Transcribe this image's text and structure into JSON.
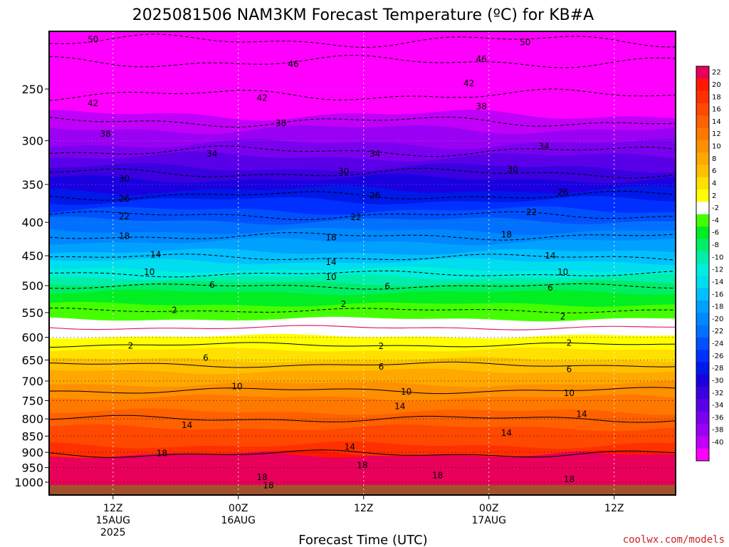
{
  "chart_data": {
    "type": "heatmap",
    "title": "2025081506 NAM3KM Forecast Temperature (ºC) for KB#A",
    "xlabel": "Forecast Time (UTC)",
    "ylabel": "",
    "credit": "coolwx.com/models",
    "y_scale": "log-pressure",
    "y_ticks": [
      250,
      300,
      350,
      400,
      450,
      500,
      550,
      600,
      650,
      700,
      750,
      800,
      850,
      900,
      950,
      1000
    ],
    "x_ticks": [
      {
        "line1": "12Z",
        "line2": "15AUG",
        "line3": "2025"
      },
      {
        "line1": "00Z",
        "line2": "16AUG",
        "line3": ""
      },
      {
        "line1": "12Z",
        "line2": "",
        "line3": ""
      },
      {
        "line1": "00Z",
        "line2": "17AUG",
        "line3": ""
      },
      {
        "line1": "12Z",
        "line2": "",
        "line3": ""
      }
    ],
    "colorbar_labels": [
      "22",
      "20",
      "18",
      "16",
      "14",
      "12",
      "10",
      "8",
      "6",
      "4",
      "2",
      "-2",
      "-4",
      "-6",
      "-8",
      "-10",
      "-12",
      "-14",
      "-16",
      "-18",
      "-20",
      "-22",
      "-24",
      "-26",
      "-28",
      "-30",
      "-32",
      "-34",
      "-36",
      "-38",
      "-40"
    ],
    "colors": {
      "22": "#e8005a",
      "20": "#ff1800",
      "18": "#ff3000",
      "16": "#ff4800",
      "14": "#ff6000",
      "12": "#ff7800",
      "10": "#ff9000",
      "8": "#ffa800",
      "6": "#ffc000",
      "4": "#ffe000",
      "2": "#ffff00",
      "0": "#ffffff",
      "-2": "#44ff00",
      "-4": "#00ee22",
      "-6": "#00ee66",
      "-8": "#00eeaa",
      "-10": "#00eedd",
      "-12": "#00ddee",
      "-14": "#00c0ff",
      "-16": "#00a0ff",
      "-18": "#0088ff",
      "-20": "#0070ff",
      "-22": "#0050ff",
      "-24": "#0030ff",
      "-26": "#0018e8",
      "-28": "#1a00e0",
      "-30": "#3a00e0",
      "-32": "#5a00e8",
      "-34": "#7a00f0",
      "-36": "#9a00f4",
      "-38": "#c000f8",
      "-40": "#ff00ff"
    },
    "freezing_line_color": "#e0207a",
    "ground_color": "#a0522d",
    "contours": [
      {
        "level": -50,
        "labels": [
          {
            "x": 0.07,
            "p": 210
          },
          {
            "x": 0.76,
            "p": 212
          }
        ]
      },
      {
        "level": -46,
        "labels": [
          {
            "x": 0.39,
            "p": 229
          },
          {
            "x": 0.69,
            "p": 225
          }
        ]
      },
      {
        "level": -42,
        "labels": [
          {
            "x": 0.07,
            "p": 263
          },
          {
            "x": 0.34,
            "p": 258
          },
          {
            "x": 0.67,
            "p": 245
          }
        ]
      },
      {
        "level": -38,
        "labels": [
          {
            "x": 0.09,
            "p": 293
          },
          {
            "x": 0.37,
            "p": 282
          },
          {
            "x": 0.69,
            "p": 266
          }
        ]
      },
      {
        "level": -34,
        "labels": [
          {
            "x": 0.26,
            "p": 314
          },
          {
            "x": 0.52,
            "p": 314
          },
          {
            "x": 0.79,
            "p": 306
          }
        ]
      },
      {
        "level": -30,
        "labels": [
          {
            "x": 0.12,
            "p": 343
          },
          {
            "x": 0.47,
            "p": 334
          },
          {
            "x": 0.74,
            "p": 332
          }
        ]
      },
      {
        "level": -26,
        "labels": [
          {
            "x": 0.12,
            "p": 368
          },
          {
            "x": 0.52,
            "p": 364
          },
          {
            "x": 0.82,
            "p": 360
          }
        ]
      },
      {
        "level": -22,
        "labels": [
          {
            "x": 0.12,
            "p": 392
          },
          {
            "x": 0.49,
            "p": 393
          },
          {
            "x": 0.77,
            "p": 386
          }
        ]
      },
      {
        "level": -18,
        "labels": [
          {
            "x": 0.12,
            "p": 420
          },
          {
            "x": 0.45,
            "p": 422
          },
          {
            "x": 0.73,
            "p": 418
          }
        ]
      },
      {
        "level": -14,
        "labels": [
          {
            "x": 0.17,
            "p": 448
          },
          {
            "x": 0.45,
            "p": 460
          },
          {
            "x": 0.8,
            "p": 450
          }
        ]
      },
      {
        "level": -10,
        "labels": [
          {
            "x": 0.16,
            "p": 477
          },
          {
            "x": 0.45,
            "p": 485
          },
          {
            "x": 0.82,
            "p": 477
          }
        ]
      },
      {
        "level": -6,
        "labels": [
          {
            "x": 0.26,
            "p": 499
          },
          {
            "x": 0.54,
            "p": 501
          },
          {
            "x": 0.8,
            "p": 504
          }
        ]
      },
      {
        "level": -2,
        "labels": [
          {
            "x": 0.2,
            "p": 545
          },
          {
            "x": 0.47,
            "p": 534
          },
          {
            "x": 0.82,
            "p": 558
          }
        ]
      },
      {
        "level": 2,
        "labels": [
          {
            "x": 0.13,
            "p": 618
          },
          {
            "x": 0.53,
            "p": 619
          },
          {
            "x": 0.83,
            "p": 612
          }
        ]
      },
      {
        "level": 6,
        "labels": [
          {
            "x": 0.25,
            "p": 645
          },
          {
            "x": 0.53,
            "p": 666
          },
          {
            "x": 0.83,
            "p": 672
          }
        ]
      },
      {
        "level": 10,
        "labels": [
          {
            "x": 0.3,
            "p": 713
          },
          {
            "x": 0.57,
            "p": 727
          },
          {
            "x": 0.83,
            "p": 731
          }
        ]
      },
      {
        "level": 14,
        "labels": [
          {
            "x": 0.22,
            "p": 818
          },
          {
            "x": 0.48,
            "p": 883
          },
          {
            "x": 0.56,
            "p": 765
          },
          {
            "x": 0.73,
            "p": 841
          },
          {
            "x": 0.85,
            "p": 787
          }
        ]
      },
      {
        "level": 18,
        "labels": [
          {
            "x": 0.18,
            "p": 903
          },
          {
            "x": 0.5,
            "p": 943
          },
          {
            "x": 0.34,
            "p": 983
          },
          {
            "x": 0.62,
            "p": 976
          },
          {
            "x": 0.83,
            "p": 990
          },
          {
            "x": 0.35,
            "p": 1012
          }
        ]
      }
    ]
  }
}
